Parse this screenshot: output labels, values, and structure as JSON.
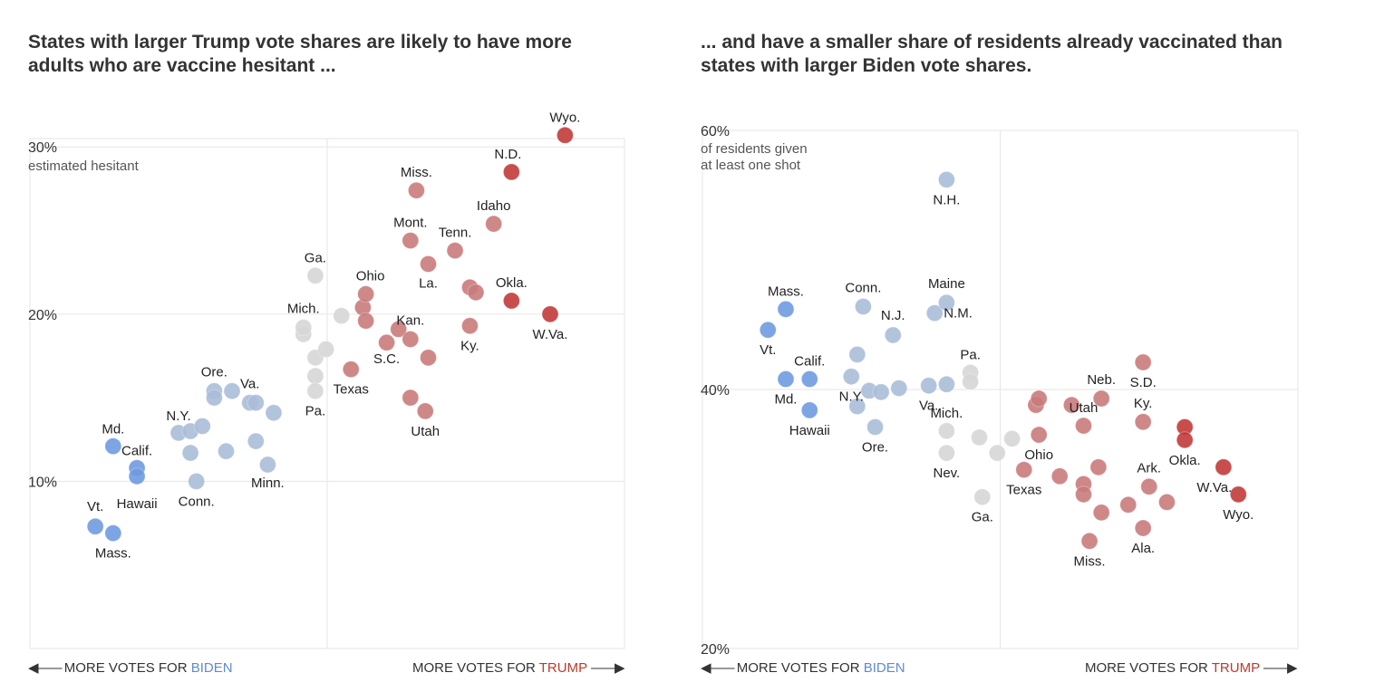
{
  "panels": [
    {
      "title": "States with larger Trump vote shares are likely to have more adults who are vaccine hesitant ...",
      "footer": {
        "left_prefix": "MORE VOTES FOR",
        "left_party": "BIDEN",
        "right_prefix": "MORE VOTES FOR",
        "right_party": "TRUMP"
      }
    },
    {
      "title": "... and have a smaller share of residents already vaccinated than states with larger Biden vote shares.",
      "footer": {
        "left_prefix": "MORE VOTES FOR",
        "left_party": "BIDEN",
        "right_prefix": "MORE VOTES FOR",
        "right_party": "TRUMP"
      }
    }
  ],
  "colors": {
    "strong_biden": "#6f9ae0",
    "lean_biden": "#aabcd8",
    "swing": "#d6d6d6",
    "lean_trump": "#c97b7b",
    "strong_trump": "#c23b3b",
    "grid": "#e6e6e6"
  },
  "chart_data": [
    {
      "type": "scatter",
      "title": "States with larger Trump vote shares are likely to have more adults who are vaccine hesitant ...",
      "xlabel": "",
      "ylabel": "estimated hesitant",
      "ylim": [
        0,
        30.5
      ],
      "y_ticks": [
        {
          "value": 10,
          "label": "10%"
        },
        {
          "value": 20,
          "label": "20%"
        },
        {
          "value": 30,
          "label": "30%"
        }
      ],
      "y_unit_label": "estimated hesitant",
      "x_axis": "Trump two-party vote margin (left: more votes for Biden, right: more votes for Trump)",
      "xlim": [
        -0.5,
        0.5
      ],
      "grid": true,
      "points": [
        {
          "x": -0.39,
          "y": 7.3,
          "g": "strong_biden",
          "label": "Vt."
        },
        {
          "x": -0.36,
          "y": 6.9,
          "g": "strong_biden",
          "label": "Mass."
        },
        {
          "x": -0.36,
          "y": 12.1,
          "g": "strong_biden",
          "label": "Md."
        },
        {
          "x": -0.32,
          "y": 10.8,
          "g": "strong_biden",
          "label": "Calif."
        },
        {
          "x": -0.32,
          "y": 10.3,
          "g": "strong_biden",
          "label": "Hawaii"
        },
        {
          "x": -0.25,
          "y": 12.9,
          "g": "lean_biden",
          "label": "N.Y."
        },
        {
          "x": -0.23,
          "y": 13.0,
          "g": "lean_biden",
          "label": ""
        },
        {
          "x": -0.21,
          "y": 13.3,
          "g": "lean_biden",
          "label": ""
        },
        {
          "x": -0.23,
          "y": 11.7,
          "g": "lean_biden",
          "label": ""
        },
        {
          "x": -0.22,
          "y": 10.0,
          "g": "lean_biden",
          "label": "Conn."
        },
        {
          "x": -0.19,
          "y": 15.4,
          "g": "lean_biden",
          "label": "Ore."
        },
        {
          "x": -0.19,
          "y": 15.0,
          "g": "lean_biden",
          "label": ""
        },
        {
          "x": -0.16,
          "y": 15.4,
          "g": "lean_biden",
          "label": ""
        },
        {
          "x": -0.17,
          "y": 11.8,
          "g": "lean_biden",
          "label": ""
        },
        {
          "x": -0.13,
          "y": 14.7,
          "g": "lean_biden",
          "label": "Va."
        },
        {
          "x": -0.12,
          "y": 14.7,
          "g": "lean_biden",
          "label": ""
        },
        {
          "x": -0.09,
          "y": 14.1,
          "g": "lean_biden",
          "label": ""
        },
        {
          "x": -0.12,
          "y": 12.4,
          "g": "lean_biden",
          "label": ""
        },
        {
          "x": -0.1,
          "y": 11.0,
          "g": "lean_biden",
          "label": "Minn."
        },
        {
          "x": -0.04,
          "y": 18.8,
          "g": "swing",
          "label": ""
        },
        {
          "x": -0.04,
          "y": 19.2,
          "g": "swing",
          "label": "Mich."
        },
        {
          "x": -0.02,
          "y": 22.3,
          "g": "swing",
          "label": "Ga."
        },
        {
          "x": -0.02,
          "y": 17.4,
          "g": "swing",
          "label": ""
        },
        {
          "x": -0.002,
          "y": 17.9,
          "g": "swing",
          "label": ""
        },
        {
          "x": -0.02,
          "y": 16.3,
          "g": "swing",
          "label": ""
        },
        {
          "x": -0.02,
          "y": 15.4,
          "g": "swing",
          "label": "Pa."
        },
        {
          "x": 0.024,
          "y": 19.9,
          "g": "swing",
          "label": ""
        },
        {
          "x": 0.04,
          "y": 16.7,
          "g": "lean_trump",
          "label": "Texas"
        },
        {
          "x": 0.06,
          "y": 20.4,
          "g": "lean_trump",
          "label": ""
        },
        {
          "x": 0.065,
          "y": 21.2,
          "g": "lean_trump",
          "label": "Ohio"
        },
        {
          "x": 0.065,
          "y": 19.6,
          "g": "lean_trump",
          "label": ""
        },
        {
          "x": 0.1,
          "y": 18.3,
          "g": "lean_trump",
          "label": "S.C."
        },
        {
          "x": 0.12,
          "y": 19.1,
          "g": "lean_trump",
          "label": ""
        },
        {
          "x": 0.14,
          "y": 18.5,
          "g": "lean_trump",
          "label": "Kan."
        },
        {
          "x": 0.17,
          "y": 17.4,
          "g": "lean_trump",
          "label": ""
        },
        {
          "x": 0.14,
          "y": 24.4,
          "g": "lean_trump",
          "label": "Mont."
        },
        {
          "x": 0.15,
          "y": 27.4,
          "g": "lean_trump",
          "label": "Miss."
        },
        {
          "x": 0.17,
          "y": 23.0,
          "g": "lean_trump",
          "label": "La."
        },
        {
          "x": 0.14,
          "y": 15.0,
          "g": "lean_trump",
          "label": ""
        },
        {
          "x": 0.165,
          "y": 14.2,
          "g": "lean_trump",
          "label": "Utah"
        },
        {
          "x": 0.215,
          "y": 23.8,
          "g": "lean_trump",
          "label": "Tenn."
        },
        {
          "x": 0.24,
          "y": 21.6,
          "g": "lean_trump",
          "label": ""
        },
        {
          "x": 0.25,
          "y": 21.3,
          "g": "lean_trump",
          "label": ""
        },
        {
          "x": 0.24,
          "y": 19.3,
          "g": "lean_trump",
          "label": "Ky."
        },
        {
          "x": 0.28,
          "y": 25.4,
          "g": "lean_trump",
          "label": "Idaho"
        },
        {
          "x": 0.31,
          "y": 20.8,
          "g": "strong_trump",
          "label": "Okla."
        },
        {
          "x": 0.31,
          "y": 28.5,
          "g": "strong_trump",
          "label": "N.D."
        },
        {
          "x": 0.375,
          "y": 20.0,
          "g": "strong_trump",
          "label": "W.Va."
        },
        {
          "x": 0.4,
          "y": 30.7,
          "g": "strong_trump",
          "label": "Wyo."
        }
      ]
    },
    {
      "type": "scatter",
      "title": "... and have a smaller share of residents already vaccinated than states with larger Biden vote shares.",
      "xlabel": "",
      "ylabel": "of residents given at least one shot",
      "ylim": [
        20,
        60
      ],
      "y_ticks": [
        {
          "value": 20,
          "label": "20%"
        },
        {
          "value": 40,
          "label": "40%"
        },
        {
          "value": 60,
          "label": "60%"
        }
      ],
      "y_unit_label": "of residents given at least one shot",
      "x_axis": "Trump two-party vote margin (left: more votes for Biden, right: more votes for Trump)",
      "xlim": [
        -0.5,
        0.5
      ],
      "grid": true,
      "points": [
        {
          "x": -0.39,
          "y": 44.6,
          "g": "strong_biden",
          "label": "Vt."
        },
        {
          "x": -0.36,
          "y": 46.2,
          "g": "strong_biden",
          "label": "Mass."
        },
        {
          "x": -0.36,
          "y": 40.8,
          "g": "strong_biden",
          "label": "Md."
        },
        {
          "x": -0.32,
          "y": 40.8,
          "g": "strong_biden",
          "label": "Calif."
        },
        {
          "x": -0.32,
          "y": 38.4,
          "g": "strong_biden",
          "label": "Hawaii"
        },
        {
          "x": -0.25,
          "y": 41.0,
          "g": "lean_biden",
          "label": "N.Y."
        },
        {
          "x": -0.24,
          "y": 42.7,
          "g": "lean_biden",
          "label": ""
        },
        {
          "x": -0.24,
          "y": 38.7,
          "g": "lean_biden",
          "label": ""
        },
        {
          "x": -0.22,
          "y": 39.9,
          "g": "lean_biden",
          "label": ""
        },
        {
          "x": -0.2,
          "y": 39.8,
          "g": "lean_biden",
          "label": ""
        },
        {
          "x": -0.21,
          "y": 37.1,
          "g": "lean_biden",
          "label": "Ore."
        },
        {
          "x": -0.23,
          "y": 46.4,
          "g": "lean_biden",
          "label": "Conn."
        },
        {
          "x": -0.18,
          "y": 44.2,
          "g": "lean_biden",
          "label": "N.J."
        },
        {
          "x": -0.17,
          "y": 40.1,
          "g": "lean_biden",
          "label": ""
        },
        {
          "x": -0.12,
          "y": 40.3,
          "g": "lean_biden",
          "label": "Va."
        },
        {
          "x": -0.09,
          "y": 40.4,
          "g": "lean_biden",
          "label": ""
        },
        {
          "x": -0.11,
          "y": 45.9,
          "g": "lean_biden",
          "label": "N.M."
        },
        {
          "x": -0.09,
          "y": 46.7,
          "g": "lean_biden",
          "label": "Maine"
        },
        {
          "x": -0.09,
          "y": 56.2,
          "g": "lean_biden",
          "label": "N.H."
        },
        {
          "x": -0.05,
          "y": 41.3,
          "g": "swing",
          "label": "Pa."
        },
        {
          "x": -0.05,
          "y": 40.6,
          "g": "swing",
          "label": ""
        },
        {
          "x": -0.09,
          "y": 36.8,
          "g": "swing",
          "label": "Mich."
        },
        {
          "x": -0.035,
          "y": 36.3,
          "g": "swing",
          "label": ""
        },
        {
          "x": -0.09,
          "y": 35.1,
          "g": "swing",
          "label": "Nev."
        },
        {
          "x": -0.005,
          "y": 35.1,
          "g": "swing",
          "label": ""
        },
        {
          "x": 0.02,
          "y": 36.2,
          "g": "swing",
          "label": ""
        },
        {
          "x": -0.03,
          "y": 31.7,
          "g": "swing",
          "label": "Ga."
        },
        {
          "x": 0.04,
          "y": 33.8,
          "g": "lean_trump",
          "label": "Texas"
        },
        {
          "x": 0.06,
          "y": 38.8,
          "g": "lean_trump",
          "label": ""
        },
        {
          "x": 0.065,
          "y": 39.3,
          "g": "lean_trump",
          "label": ""
        },
        {
          "x": 0.065,
          "y": 36.5,
          "g": "lean_trump",
          "label": "Ohio"
        },
        {
          "x": 0.1,
          "y": 33.3,
          "g": "lean_trump",
          "label": ""
        },
        {
          "x": 0.12,
          "y": 38.8,
          "g": "lean_trump",
          "label": ""
        },
        {
          "x": 0.14,
          "y": 37.2,
          "g": "lean_trump",
          "label": "Utah"
        },
        {
          "x": 0.17,
          "y": 39.3,
          "g": "lean_trump",
          "label": "Neb."
        },
        {
          "x": 0.14,
          "y": 32.7,
          "g": "lean_trump",
          "label": ""
        },
        {
          "x": 0.14,
          "y": 31.9,
          "g": "lean_trump",
          "label": ""
        },
        {
          "x": 0.165,
          "y": 34.0,
          "g": "lean_trump",
          "label": ""
        },
        {
          "x": 0.17,
          "y": 30.5,
          "g": "lean_trump",
          "label": ""
        },
        {
          "x": 0.15,
          "y": 28.3,
          "g": "lean_trump",
          "label": "Miss."
        },
        {
          "x": 0.215,
          "y": 31.1,
          "g": "lean_trump",
          "label": ""
        },
        {
          "x": 0.24,
          "y": 42.1,
          "g": "lean_trump",
          "label": "S.D."
        },
        {
          "x": 0.24,
          "y": 37.5,
          "g": "lean_trump",
          "label": "Ky."
        },
        {
          "x": 0.25,
          "y": 32.5,
          "g": "lean_trump",
          "label": "Ark."
        },
        {
          "x": 0.24,
          "y": 29.3,
          "g": "lean_trump",
          "label": "Ala."
        },
        {
          "x": 0.28,
          "y": 31.3,
          "g": "lean_trump",
          "label": ""
        },
        {
          "x": 0.31,
          "y": 37.1,
          "g": "strong_trump",
          "label": ""
        },
        {
          "x": 0.31,
          "y": 36.1,
          "g": "strong_trump",
          "label": "Okla."
        },
        {
          "x": 0.375,
          "y": 34.0,
          "g": "strong_trump",
          "label": "W.Va."
        },
        {
          "x": 0.4,
          "y": 31.9,
          "g": "strong_trump",
          "label": "Wyo."
        }
      ]
    }
  ]
}
